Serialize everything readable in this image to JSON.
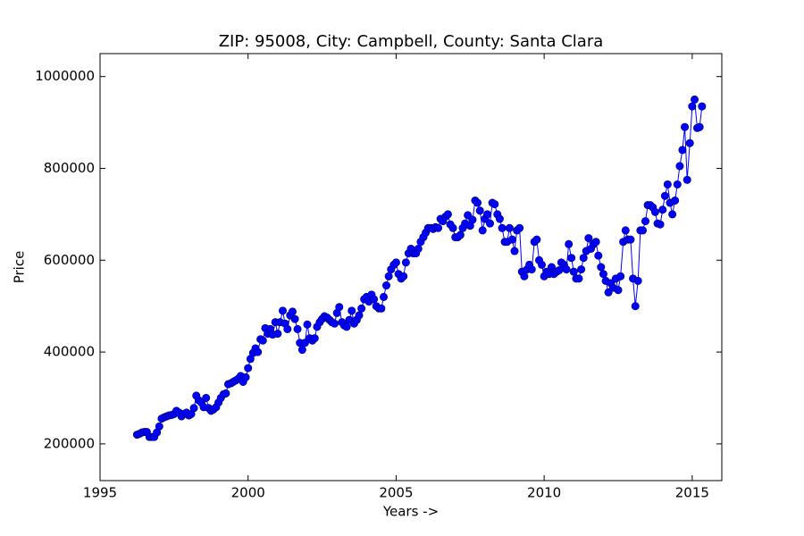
{
  "chart_data": {
    "type": "line",
    "title": "ZIP: 95008, City: Campbell, County: Santa Clara",
    "x_label": "Years ->",
    "y_label": "Price",
    "x": [
      1996.25,
      1996.33,
      1996.42,
      1996.5,
      1996.58,
      1996.67,
      1996.75,
      1996.83,
      1996.92,
      1997.0,
      1997.08,
      1997.17,
      1997.25,
      1997.33,
      1997.42,
      1997.5,
      1997.58,
      1997.67,
      1997.75,
      1997.83,
      1997.92,
      1998.0,
      1998.08,
      1998.17,
      1998.25,
      1998.33,
      1998.42,
      1998.5,
      1998.58,
      1998.67,
      1998.75,
      1998.83,
      1998.92,
      1999.0,
      1999.08,
      1999.17,
      1999.25,
      1999.33,
      1999.42,
      1999.5,
      1999.58,
      1999.67,
      1999.75,
      1999.83,
      1999.92,
      2000.0,
      2000.08,
      2000.17,
      2000.25,
      2000.33,
      2000.42,
      2000.5,
      2000.58,
      2000.67,
      2000.75,
      2000.83,
      2000.92,
      2001.0,
      2001.08,
      2001.17,
      2001.25,
      2001.33,
      2001.42,
      2001.5,
      2001.58,
      2001.67,
      2001.75,
      2001.83,
      2001.92,
      2002.0,
      2002.08,
      2002.17,
      2002.25,
      2002.33,
      2002.42,
      2002.5,
      2002.58,
      2002.67,
      2002.75,
      2002.83,
      2002.92,
      2003.0,
      2003.08,
      2003.17,
      2003.25,
      2003.33,
      2003.42,
      2003.5,
      2003.58,
      2003.67,
      2003.75,
      2003.83,
      2003.92,
      2004.0,
      2004.08,
      2004.17,
      2004.25,
      2004.33,
      2004.42,
      2004.5,
      2004.58,
      2004.67,
      2004.75,
      2004.83,
      2004.92,
      2005.0,
      2005.08,
      2005.17,
      2005.25,
      2005.33,
      2005.42,
      2005.5,
      2005.58,
      2005.67,
      2005.75,
      2005.83,
      2005.92,
      2006.0,
      2006.08,
      2006.17,
      2006.25,
      2006.33,
      2006.42,
      2006.5,
      2006.58,
      2006.67,
      2006.75,
      2006.83,
      2006.92,
      2007.0,
      2007.08,
      2007.17,
      2007.25,
      2007.33,
      2007.42,
      2007.5,
      2007.58,
      2007.67,
      2007.75,
      2007.83,
      2007.92,
      2008.0,
      2008.08,
      2008.17,
      2008.25,
      2008.33,
      2008.42,
      2008.5,
      2008.58,
      2008.67,
      2008.75,
      2008.83,
      2008.92,
      2009.0,
      2009.08,
      2009.17,
      2009.25,
      2009.33,
      2009.42,
      2009.5,
      2009.58,
      2009.67,
      2009.75,
      2009.83,
      2009.92,
      2010.0,
      2010.08,
      2010.17,
      2010.25,
      2010.33,
      2010.42,
      2010.5,
      2010.58,
      2010.67,
      2010.75,
      2010.83,
      2010.92,
      2011.0,
      2011.08,
      2011.17,
      2011.25,
      2011.33,
      2011.42,
      2011.5,
      2011.58,
      2011.67,
      2011.75,
      2011.83,
      2011.92,
      2012.0,
      2012.08,
      2012.17,
      2012.25,
      2012.33,
      2012.42,
      2012.5,
      2012.58,
      2012.67,
      2012.75,
      2012.83,
      2012.92,
      2013.0,
      2013.08,
      2013.17,
      2013.25,
      2013.33,
      2013.42,
      2013.5,
      2013.58,
      2013.67,
      2013.75,
      2013.83,
      2013.92,
      2014.0,
      2014.08,
      2014.17,
      2014.25,
      2014.33,
      2014.42,
      2014.5,
      2014.58,
      2014.67,
      2014.75,
      2014.83,
      2014.92,
      2015.0,
      2015.08,
      2015.17,
      2015.25,
      2015.33
    ],
    "series": [
      {
        "color": "#0000ff",
        "values": [
          220000,
          222000,
          225000,
          226000,
          226000,
          215000,
          215000,
          215000,
          225000,
          238000,
          255000,
          258000,
          260000,
          262000,
          263000,
          265000,
          272000,
          268000,
          260000,
          265000,
          268000,
          262000,
          265000,
          278000,
          305000,
          295000,
          290000,
          280000,
          300000,
          278000,
          272000,
          275000,
          280000,
          290000,
          300000,
          308000,
          310000,
          330000,
          332000,
          335000,
          338000,
          342000,
          348000,
          335000,
          345000,
          365000,
          385000,
          398000,
          408000,
          400000,
          428000,
          425000,
          452000,
          440000,
          450000,
          438000,
          465000,
          440000,
          465000,
          490000,
          462000,
          450000,
          480000,
          488000,
          472000,
          450000,
          420000,
          405000,
          420000,
          460000,
          430000,
          425000,
          430000,
          455000,
          465000,
          472000,
          478000,
          475000,
          470000,
          465000,
          462000,
          485000,
          498000,
          465000,
          458000,
          455000,
          470000,
          490000,
          462000,
          470000,
          480000,
          495000,
          515000,
          520000,
          510000,
          525000,
          515000,
          500000,
          495000,
          495000,
          520000,
          545000,
          565000,
          580000,
          590000,
          595000,
          570000,
          560000,
          565000,
          595000,
          615000,
          625000,
          615000,
          615000,
          625000,
          640000,
          650000,
          660000,
          670000,
          670000,
          668000,
          672000,
          670000,
          690000,
          685000,
          695000,
          700000,
          678000,
          670000,
          650000,
          650000,
          655000,
          670000,
          680000,
          698000,
          675000,
          688000,
          730000,
          725000,
          708000,
          665000,
          690000,
          700000,
          680000,
          725000,
          722000,
          700000,
          690000,
          670000,
          640000,
          640000,
          670000,
          645000,
          620000,
          665000,
          670000,
          575000,
          565000,
          580000,
          590000,
          580000,
          640000,
          645000,
          600000,
          590000,
          565000,
          575000,
          570000,
          585000,
          570000,
          575000,
          578000,
          595000,
          590000,
          580000,
          635000,
          605000,
          575000,
          560000,
          560000,
          580000,
          605000,
          620000,
          648000,
          625000,
          635000,
          640000,
          610000,
          585000,
          570000,
          555000,
          530000,
          550000,
          540000,
          560000,
          535000,
          565000,
          640000,
          665000,
          645000,
          645000,
          560000,
          500000,
          555000,
          665000,
          665000,
          685000,
          720000,
          720000,
          715000,
          705000,
          680000,
          678000,
          710000,
          740000,
          765000,
          725000,
          700000,
          730000,
          765000,
          805000,
          840000,
          890000,
          775000,
          855000,
          935000,
          950000,
          888000,
          890000,
          935000
        ]
      }
    ],
    "xlim": [
      1995,
      2016
    ],
    "xticks": [
      1995,
      2000,
      2005,
      2010,
      2015
    ],
    "ylim": [
      120000,
      1050000
    ],
    "yticks": [
      200000,
      400000,
      600000,
      800000,
      1000000
    ]
  }
}
